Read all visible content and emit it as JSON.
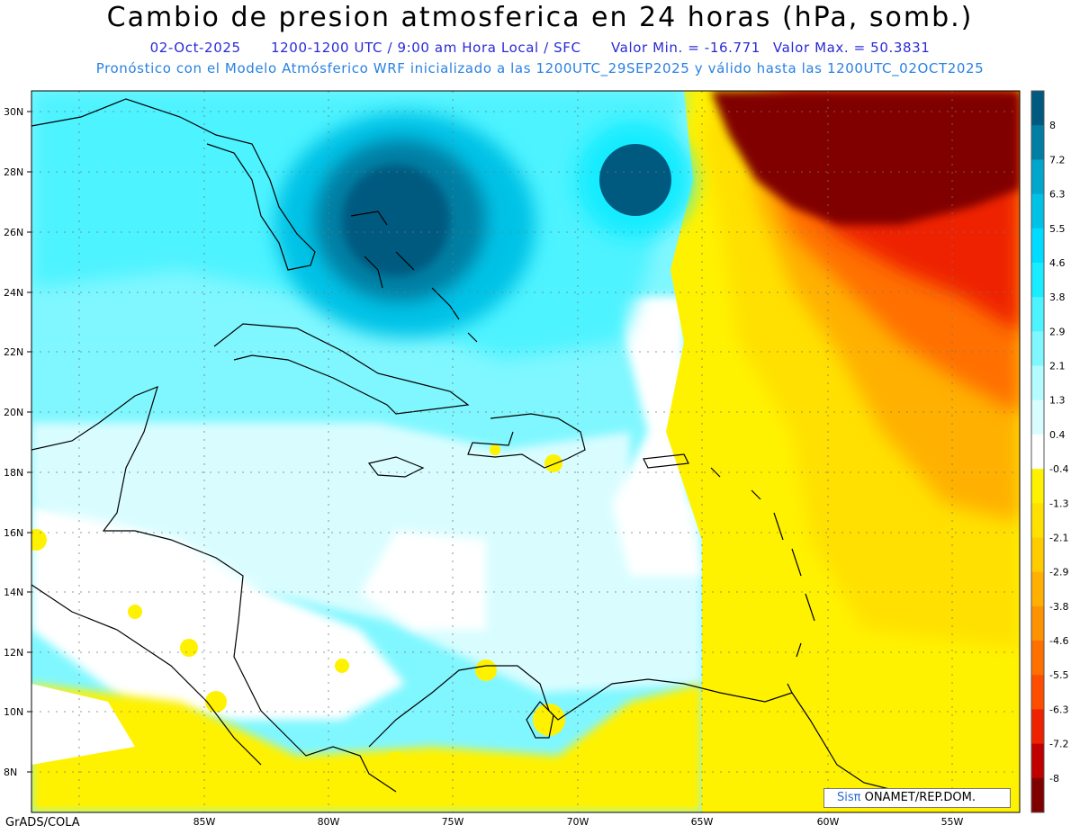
{
  "header": {
    "title": "Cambio de presion atmosferica en 24 horas (hPa, somb.)",
    "date": "02-Oct-2025",
    "period": "1200-1200 UTC / 9:00 am Hora Local / SFC",
    "min_label": "Valor Min. = -16.771",
    "max_label": "Valor Max. = 50.3831",
    "model_info": "Pronóstico con el Modelo Atmósferico WRF inicializado a las 1200UTC_29SEP2025 y válido hasta las  1200UTC_02OCT2025"
  },
  "map": {
    "lat_labels": [
      "30N",
      "28N",
      "26N",
      "24N",
      "22N",
      "20N",
      "18N",
      "16N",
      "14N",
      "12N",
      "10N",
      "8N"
    ],
    "lon_labels": [
      "85W",
      "80W",
      "75W",
      "70W",
      "65W",
      "60W",
      "55W"
    ],
    "lat_range": [
      6.7,
      30.6
    ],
    "lon_range": [
      -91.9,
      -52.6
    ],
    "grid": true,
    "places": [
      "Florida",
      "Bahamas",
      "Cuba",
      "Jamaica",
      "Hispaniola",
      "Puerto Rico",
      "Lesser Antilles",
      "Central America",
      "Venezuela",
      "Colombia"
    ]
  },
  "colorbar": {
    "labels": [
      "8",
      "7.2",
      "6.3",
      "5.5",
      "4.6",
      "3.8",
      "2.9",
      "2.1",
      "1.3",
      "0.4",
      "-0.4",
      "-1.3",
      "-2.1",
      "-2.9",
      "-3.8",
      "-4.6",
      "-5.5",
      "-6.3",
      "-7.2",
      "-8"
    ],
    "colors": [
      "#005a80",
      "#007ea3",
      "#00a6cc",
      "#00c2e6",
      "#00dcff",
      "#19ecff",
      "#4df3ff",
      "#80f7ff",
      "#b3fbff",
      "#d9fdff",
      "#ffffff",
      "#fff200",
      "#ffe000",
      "#ffcc00",
      "#ffb000",
      "#ff9200",
      "#ff7000",
      "#ff4d00",
      "#ee2200",
      "#c00000",
      "#800000"
    ]
  },
  "footer": {
    "credit": "GrADS/COLA",
    "logo_brand": "Sisπ",
    "logo_text": " ONAMET/REP.DOM."
  }
}
